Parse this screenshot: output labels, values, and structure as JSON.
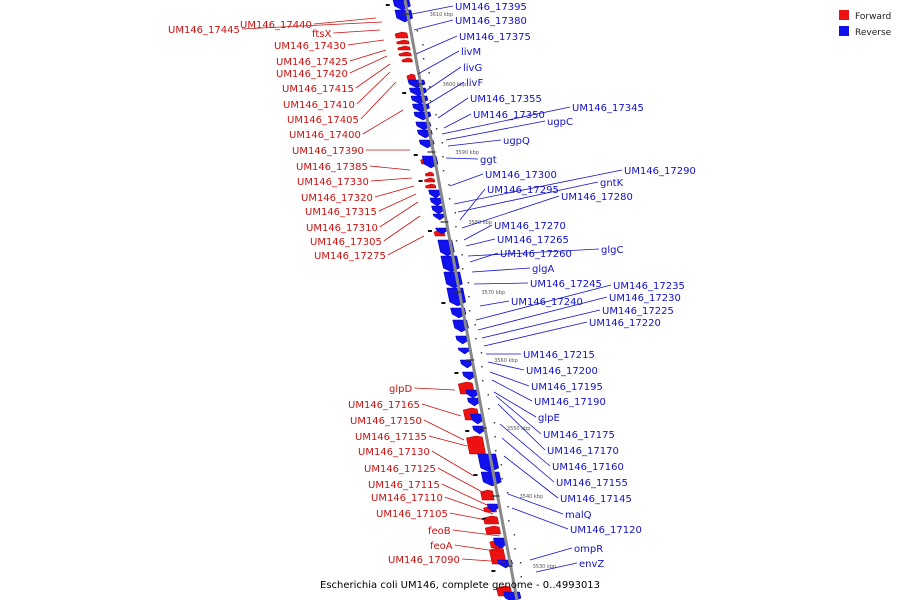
{
  "title": "Escherichia coli UM146, complete genome - 0..4993013",
  "legend": [
    {
      "label": "Forward",
      "color": "#ee1111"
    },
    {
      "label": "Reverse",
      "color": "#1111ee"
    }
  ],
  "ticks": [
    "3610 kbp",
    "3600 kbp",
    "3590 kbp",
    "3580 kbp",
    "3570 kbp",
    "3560 kbp",
    "3550 kbp",
    "3540 kbp",
    "3530 kbp"
  ],
  "forward_labels": [
    "UM146_17445",
    "UM146_17440",
    "ftsX",
    "UM146_17430",
    "UM146_17425",
    "UM146_17420",
    "UM146_17415",
    "UM146_17410",
    "UM146_17405",
    "UM146_17400",
    "UM146_17390",
    "UM146_17385",
    "UM146_17330",
    "UM146_17320",
    "UM146_17315",
    "UM146_17310",
    "UM146_17305",
    "UM146_17275",
    "glpD",
    "UM146_17165",
    "UM146_17150",
    "UM146_17135",
    "UM146_17130",
    "UM146_17125",
    "UM146_17115",
    "UM146_17110",
    "UM146_17105",
    "feoB",
    "feoA",
    "UM146_17090"
  ],
  "reverse_labels": [
    "UM146_17395",
    "UM146_17380",
    "UM146_17375",
    "livM",
    "livG",
    "livF",
    "UM146_17355",
    "UM146_17345",
    "UM146_17350",
    "ugpC",
    "ugpQ",
    "ggt",
    "UM146_17300",
    "UM146_17290",
    "gntK",
    "UM146_17295",
    "UM146_17280",
    "UM146_17270",
    "UM146_17265",
    "glgC",
    "UM146_17260",
    "glgA",
    "UM146_17245",
    "UM146_17235",
    "UM146_17230",
    "UM146_17240",
    "UM146_17225",
    "UM146_17220",
    "UM146_17215",
    "UM146_17200",
    "UM146_17195",
    "UM146_17190",
    "glpE",
    "UM146_17175",
    "UM146_17170",
    "UM146_17160",
    "UM146_17155",
    "UM146_17145",
    "malQ",
    "UM146_17120",
    "ompR",
    "envZ"
  ]
}
